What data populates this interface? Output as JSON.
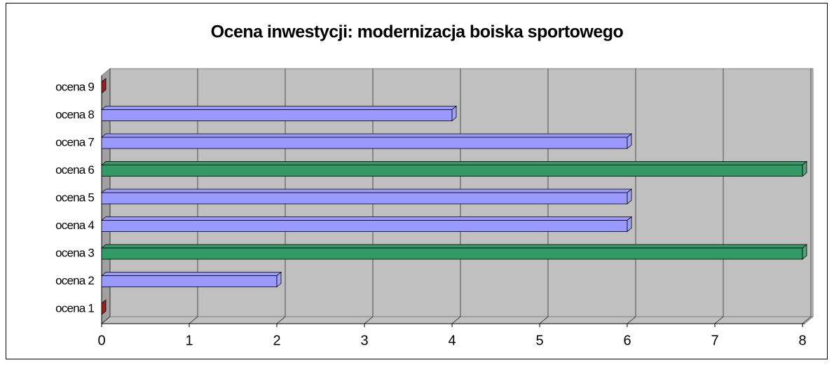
{
  "chart_data": {
    "type": "bar3d",
    "orientation": "horizontal",
    "title": "Ocena inwestycji: modernizacja boiska sportowego",
    "categories": [
      "ocena 1",
      "ocena 2",
      "ocena 3",
      "ocena 4",
      "ocena 5",
      "ocena 6",
      "ocena 7",
      "ocena 8",
      "ocena 9"
    ],
    "values": [
      0,
      2,
      8,
      6,
      6,
      8,
      6,
      4,
      0
    ],
    "colors": [
      "#990000",
      "#9999ff",
      "#339966",
      "#9999ff",
      "#9999ff",
      "#339966",
      "#9999ff",
      "#9999ff",
      "#990000"
    ],
    "xlim": [
      0,
      8
    ],
    "xticks": [
      0,
      1,
      2,
      3,
      4,
      5,
      6,
      7,
      8
    ],
    "grid": true
  }
}
